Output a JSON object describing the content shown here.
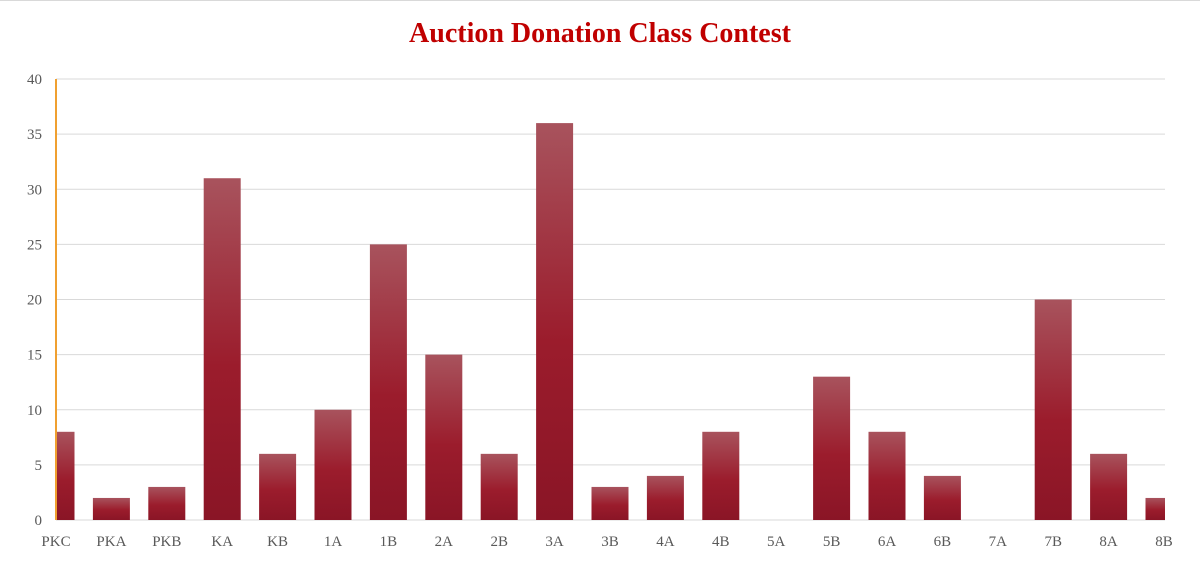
{
  "chart_data": {
    "type": "bar",
    "title": "Auction Donation Class Contest",
    "xlabel": "",
    "ylabel": "",
    "categories": [
      "PKC",
      "PKA",
      "PKB",
      "KA",
      "KB",
      "1A",
      "1B",
      "2A",
      "2B",
      "3A",
      "3B",
      "4A",
      "4B",
      "5A",
      "5B",
      "6A",
      "6B",
      "7A",
      "7B",
      "8A",
      "8B"
    ],
    "values": [
      8,
      2,
      3,
      31,
      6,
      10,
      25,
      15,
      6,
      36,
      3,
      4,
      8,
      0,
      13,
      8,
      4,
      0,
      20,
      6,
      2
    ],
    "ylim": [
      0,
      40
    ],
    "yticks": [
      0,
      5,
      10,
      15,
      20,
      25,
      30,
      35,
      40
    ],
    "grid": true,
    "legend": "none",
    "colors": {
      "title": "#c00000",
      "bar_top": "#a8535d",
      "bar_mid": "#9b1c2c",
      "bar_bottom": "#8a1526",
      "axis_line": "#f0a030",
      "gridline": "#d9d9d9",
      "tick_text": "#595959"
    }
  }
}
